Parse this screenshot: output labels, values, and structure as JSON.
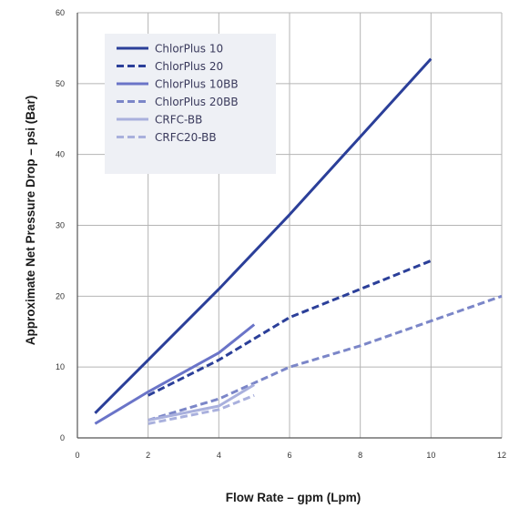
{
  "chart_data": {
    "type": "line",
    "xlabel": "Flow Rate – gpm (Lpm)",
    "ylabel": "Approximate Net Pressure Drop – psi (Bar)",
    "xlim": [
      0,
      12
    ],
    "ylim": [
      0,
      60
    ],
    "x_ticks": [
      "0",
      "2",
      "4",
      "6",
      "8",
      "10",
      "12"
    ],
    "y_ticks": [
      "0",
      "10",
      "20",
      "30",
      "40",
      "50",
      "60"
    ],
    "grid": true,
    "legend_position": "top-left",
    "series": [
      {
        "name": "ChlorPlus 10",
        "color": "#2b3f99",
        "dash": "solid",
        "points": [
          [
            0.5,
            3.5
          ],
          [
            2,
            11
          ],
          [
            4,
            21
          ],
          [
            6,
            31.5
          ],
          [
            8,
            42.5
          ],
          [
            10,
            53.5
          ]
        ]
      },
      {
        "name": "ChlorPlus 20",
        "color": "#2b3f99",
        "dash": "dashed",
        "points": [
          [
            2,
            6
          ],
          [
            4,
            11
          ],
          [
            6,
            17
          ],
          [
            8,
            21
          ],
          [
            10,
            25
          ]
        ]
      },
      {
        "name": "ChlorPlus 10BB",
        "color": "#6a74c8",
        "dash": "solid",
        "points": [
          [
            0.5,
            2
          ],
          [
            2,
            6.5
          ],
          [
            4,
            12
          ],
          [
            5,
            16
          ]
        ]
      },
      {
        "name": "ChlorPlus 20BB",
        "color": "#7b86c8",
        "dash": "dashed",
        "points": [
          [
            2,
            2.5
          ],
          [
            4,
            5.5
          ],
          [
            6,
            10
          ],
          [
            8,
            13
          ],
          [
            10,
            16.5
          ],
          [
            12,
            20
          ]
        ]
      },
      {
        "name": "CRFC-BB",
        "color": "#a9b0dd",
        "dash": "solid",
        "points": [
          [
            2,
            2.5
          ],
          [
            4,
            4.5
          ],
          [
            5,
            7.5
          ]
        ]
      },
      {
        "name": "CRFC20-BB",
        "color": "#a9b0dd",
        "dash": "dashed",
        "points": [
          [
            2,
            2
          ],
          [
            4,
            4
          ],
          [
            5,
            6
          ]
        ]
      }
    ]
  }
}
